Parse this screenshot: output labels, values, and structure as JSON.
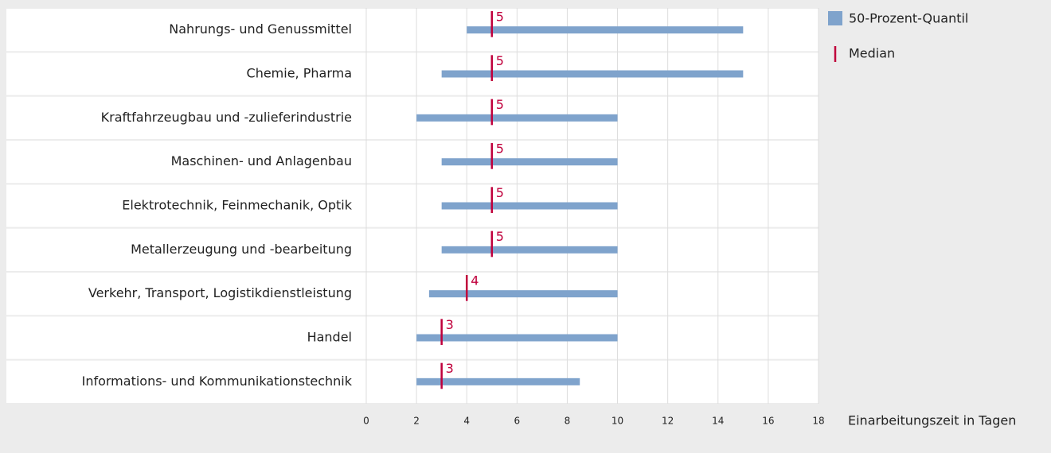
{
  "chart_data": {
    "type": "range_bar",
    "categories": [
      "Nahrungs- und Genussmittel",
      "Chemie, Pharma",
      "Kraftfahrzeugbau und -zulieferindustrie",
      "Maschinen- und Anlagenbau",
      "Elektrotechnik, Feinmechanik, Optik",
      "Metallerzeugung und -bearbeitung",
      "Verkehr, Transport, Logistikdienstleistung",
      "Handel",
      "Informations- und Kommunikationstechnik"
    ],
    "series": [
      {
        "name": "50-Prozent-Quantil",
        "color": "#7fa3cc",
        "low": [
          4,
          3,
          2,
          3,
          3,
          3,
          2.5,
          2,
          2
        ],
        "high": [
          15,
          15,
          10,
          10,
          10,
          10,
          10,
          10,
          8.5
        ]
      },
      {
        "name": "Median",
        "color": "#c0003c",
        "values": [
          5,
          5,
          5,
          5,
          5,
          5,
          4,
          3,
          3
        ]
      }
    ],
    "xlim": [
      0,
      18
    ],
    "xticks": [
      0,
      2,
      4,
      6,
      8,
      10,
      12,
      14,
      16,
      18
    ],
    "x_label": "Einarbeitungszeit in Tagen",
    "grid": true
  }
}
